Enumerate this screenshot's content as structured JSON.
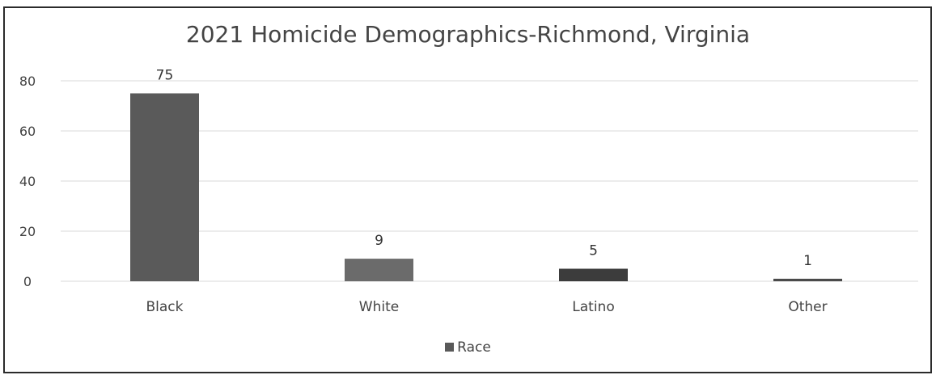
{
  "chart_data": {
    "type": "bar",
    "title": "2021 Homicide Demographics-Richmond, Virginia",
    "categories": [
      "Black",
      "White",
      "Latino",
      "Other"
    ],
    "series": [
      {
        "name": "Race",
        "values": [
          75,
          9,
          5,
          1
        ]
      }
    ],
    "data_labels": [
      "75",
      "9",
      "5",
      "1"
    ],
    "y_ticks": [
      "0",
      "20",
      "40",
      "60",
      "80"
    ],
    "ylim": [
      0,
      80
    ],
    "xlabel": "",
    "ylabel": "",
    "grid": true,
    "legend_position": "bottom",
    "bar_colors": [
      "#5a5a5a",
      "#6b6b6b",
      "#3c3c3c",
      "#4a4a4a"
    ],
    "gridline_color": "#d9d9d9"
  }
}
